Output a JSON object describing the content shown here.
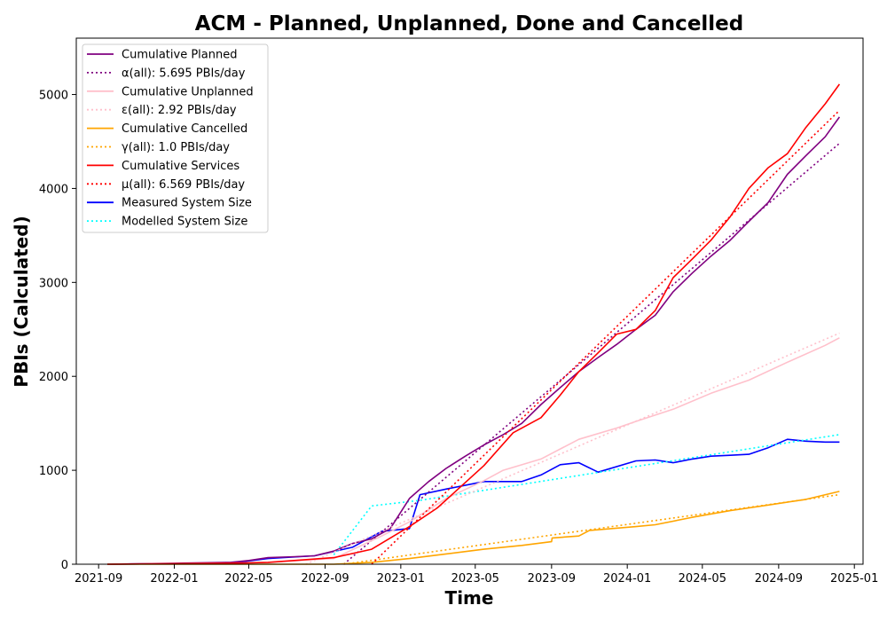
{
  "chart_data": {
    "type": "line",
    "title": "ACM - Planned, Unplanned, Done  and Cancelled",
    "xlabel": "Time",
    "ylabel": "PBIs (Calculated)",
    "xlim": [
      "2021-07-27",
      "2025-01-15"
    ],
    "ylim": [
      0,
      5600
    ],
    "x_ticks": [
      "2021-09-01",
      "2022-01-01",
      "2022-05-01",
      "2022-09-01",
      "2023-01-01",
      "2023-05-01",
      "2023-09-01",
      "2024-01-01",
      "2024-05-01",
      "2024-09-01",
      "2025-01-01"
    ],
    "x_tick_labels": [
      "2021-09",
      "2022-01",
      "2022-05",
      "2022-09",
      "2023-01",
      "2023-05",
      "2023-09",
      "2024-01",
      "2024-05",
      "2024-09",
      "2025-01"
    ],
    "y_ticks": [
      0,
      1000,
      2000,
      3000,
      4000,
      5000
    ],
    "y_tick_labels": [
      "0",
      "1000",
      "2000",
      "3000",
      "4000",
      "5000"
    ],
    "grid": false,
    "legend_position": "upper-left",
    "series": [
      {
        "name": "Cumulative Planned",
        "color": "#800080",
        "style": "solid",
        "points": [
          [
            "2021-09-15",
            0
          ],
          [
            "2022-01-01",
            10
          ],
          [
            "2022-04-01",
            20
          ],
          [
            "2022-05-01",
            40
          ],
          [
            "2022-06-01",
            70
          ],
          [
            "2022-07-15",
            80
          ],
          [
            "2022-08-15",
            90
          ],
          [
            "2022-09-15",
            140
          ],
          [
            "2022-10-15",
            220
          ],
          [
            "2022-11-15",
            270
          ],
          [
            "2022-12-15",
            380
          ],
          [
            "2023-01-15",
            700
          ],
          [
            "2023-02-15",
            880
          ],
          [
            "2023-03-15",
            1020
          ],
          [
            "2023-04-15",
            1150
          ],
          [
            "2023-05-15",
            1270
          ],
          [
            "2023-06-15",
            1380
          ],
          [
            "2023-07-15",
            1500
          ],
          [
            "2023-08-15",
            1700
          ],
          [
            "2023-09-15",
            1880
          ],
          [
            "2023-10-15",
            2050
          ],
          [
            "2023-11-15",
            2200
          ],
          [
            "2023-12-15",
            2340
          ],
          [
            "2024-01-15",
            2500
          ],
          [
            "2024-02-15",
            2650
          ],
          [
            "2024-03-15",
            2900
          ],
          [
            "2024-04-15",
            3100
          ],
          [
            "2024-05-15",
            3280
          ],
          [
            "2024-06-15",
            3450
          ],
          [
            "2024-07-15",
            3650
          ],
          [
            "2024-08-15",
            3850
          ],
          [
            "2024-09-15",
            4150
          ],
          [
            "2024-10-15",
            4350
          ],
          [
            "2024-11-15",
            4550
          ],
          [
            "2024-12-08",
            4760
          ]
        ]
      },
      {
        "name": "α(all): 5.695 PBIs/day",
        "color": "#800080",
        "style": "dotted",
        "points": [
          [
            "2022-10-01",
            0
          ],
          [
            "2024-12-08",
            4480
          ]
        ]
      },
      {
        "name": "Cumulative Unplanned",
        "color": "#ffc0cb",
        "style": "solid",
        "points": [
          [
            "2021-09-15",
            0
          ],
          [
            "2022-04-01",
            10
          ],
          [
            "2022-06-01",
            20
          ],
          [
            "2022-09-15",
            60
          ],
          [
            "2022-12-01",
            300
          ],
          [
            "2023-01-15",
            450
          ],
          [
            "2023-03-15",
            700
          ],
          [
            "2023-05-15",
            890
          ],
          [
            "2023-06-15",
            1000
          ],
          [
            "2023-08-15",
            1120
          ],
          [
            "2023-10-15",
            1330
          ],
          [
            "2023-12-15",
            1450
          ],
          [
            "2024-01-15",
            1520
          ],
          [
            "2024-03-15",
            1650
          ],
          [
            "2024-05-15",
            1820
          ],
          [
            "2024-07-15",
            1960
          ],
          [
            "2024-09-15",
            2150
          ],
          [
            "2024-11-15",
            2330
          ],
          [
            "2024-12-08",
            2410
          ]
        ]
      },
      {
        "name": "ε(all): 2.92 PBIs/day",
        "color": "#ffc0cb",
        "style": "dotted",
        "points": [
          [
            "2022-08-01",
            0
          ],
          [
            "2024-12-08",
            2460
          ]
        ]
      },
      {
        "name": "Cumulative Cancelled",
        "color": "#ffa500",
        "style": "solid",
        "points": [
          [
            "2021-09-15",
            0
          ],
          [
            "2022-09-15",
            0
          ],
          [
            "2022-11-15",
            20
          ],
          [
            "2023-01-15",
            60
          ],
          [
            "2023-03-15",
            110
          ],
          [
            "2023-05-15",
            160
          ],
          [
            "2023-07-15",
            200
          ],
          [
            "2023-09-01",
            240
          ],
          [
            "2023-09-02",
            280
          ],
          [
            "2023-10-15",
            300
          ],
          [
            "2023-11-01",
            360
          ],
          [
            "2024-01-15",
            400
          ],
          [
            "2024-02-15",
            420
          ],
          [
            "2024-04-15",
            500
          ],
          [
            "2024-06-15",
            570
          ],
          [
            "2024-08-15",
            630
          ],
          [
            "2024-10-15",
            690
          ],
          [
            "2024-12-08",
            775
          ]
        ]
      },
      {
        "name": "γ(all): 1.0 PBIs/day",
        "color": "#ffa500",
        "style": "dotted",
        "points": [
          [
            "2022-10-01",
            0
          ],
          [
            "2024-12-08",
            740
          ]
        ]
      },
      {
        "name": "Cumulative Services",
        "color": "#ff0000",
        "style": "solid",
        "points": [
          [
            "2021-09-15",
            0
          ],
          [
            "2022-04-01",
            10
          ],
          [
            "2022-06-01",
            20
          ],
          [
            "2022-09-15",
            70
          ],
          [
            "2022-11-15",
            160
          ],
          [
            "2023-01-15",
            400
          ],
          [
            "2023-03-01",
            600
          ],
          [
            "2023-05-15",
            1050
          ],
          [
            "2023-07-01",
            1400
          ],
          [
            "2023-08-15",
            1560
          ],
          [
            "2023-09-15",
            1800
          ],
          [
            "2023-10-15",
            2050
          ],
          [
            "2023-11-15",
            2250
          ],
          [
            "2023-12-15",
            2450
          ],
          [
            "2024-01-15",
            2500
          ],
          [
            "2024-02-15",
            2700
          ],
          [
            "2024-03-15",
            3050
          ],
          [
            "2024-04-15",
            3250
          ],
          [
            "2024-05-15",
            3450
          ],
          [
            "2024-06-15",
            3700
          ],
          [
            "2024-07-15",
            4000
          ],
          [
            "2024-08-15",
            4220
          ],
          [
            "2024-09-15",
            4370
          ],
          [
            "2024-10-15",
            4650
          ],
          [
            "2024-11-15",
            4900
          ],
          [
            "2024-12-08",
            5110
          ]
        ]
      },
      {
        "name": "μ(all): 6.569 PBIs/day",
        "color": "#ff0000",
        "style": "dotted",
        "points": [
          [
            "2022-11-15",
            0
          ],
          [
            "2024-12-08",
            4830
          ]
        ]
      },
      {
        "name": "Measured System Size",
        "color": "#0000ff",
        "style": "solid",
        "points": [
          [
            "2021-09-15",
            0
          ],
          [
            "2022-04-01",
            10
          ],
          [
            "2022-06-01",
            60
          ],
          [
            "2022-08-15",
            90
          ],
          [
            "2022-10-15",
            180
          ],
          [
            "2022-12-01",
            350
          ],
          [
            "2023-01-15",
            380
          ],
          [
            "2023-02-01",
            740
          ],
          [
            "2023-03-15",
            800
          ],
          [
            "2023-05-15",
            880
          ],
          [
            "2023-07-15",
            880
          ],
          [
            "2023-08-15",
            950
          ],
          [
            "2023-09-15",
            1060
          ],
          [
            "2023-10-15",
            1080
          ],
          [
            "2023-11-15",
            980
          ],
          [
            "2024-01-15",
            1100
          ],
          [
            "2024-02-15",
            1110
          ],
          [
            "2024-03-15",
            1080
          ],
          [
            "2024-04-15",
            1120
          ],
          [
            "2024-05-15",
            1150
          ],
          [
            "2024-06-15",
            1160
          ],
          [
            "2024-07-15",
            1170
          ],
          [
            "2024-08-15",
            1240
          ],
          [
            "2024-09-15",
            1330
          ],
          [
            "2024-10-15",
            1310
          ],
          [
            "2024-11-15",
            1300
          ],
          [
            "2024-12-08",
            1300
          ]
        ]
      },
      {
        "name": "Modelled System Size",
        "color": "#00ffff",
        "style": "dotted",
        "points": [
          [
            "2022-09-15",
            100
          ],
          [
            "2022-11-15",
            620
          ],
          [
            "2023-02-01",
            680
          ],
          [
            "2024-12-08",
            1380
          ]
        ]
      }
    ]
  }
}
